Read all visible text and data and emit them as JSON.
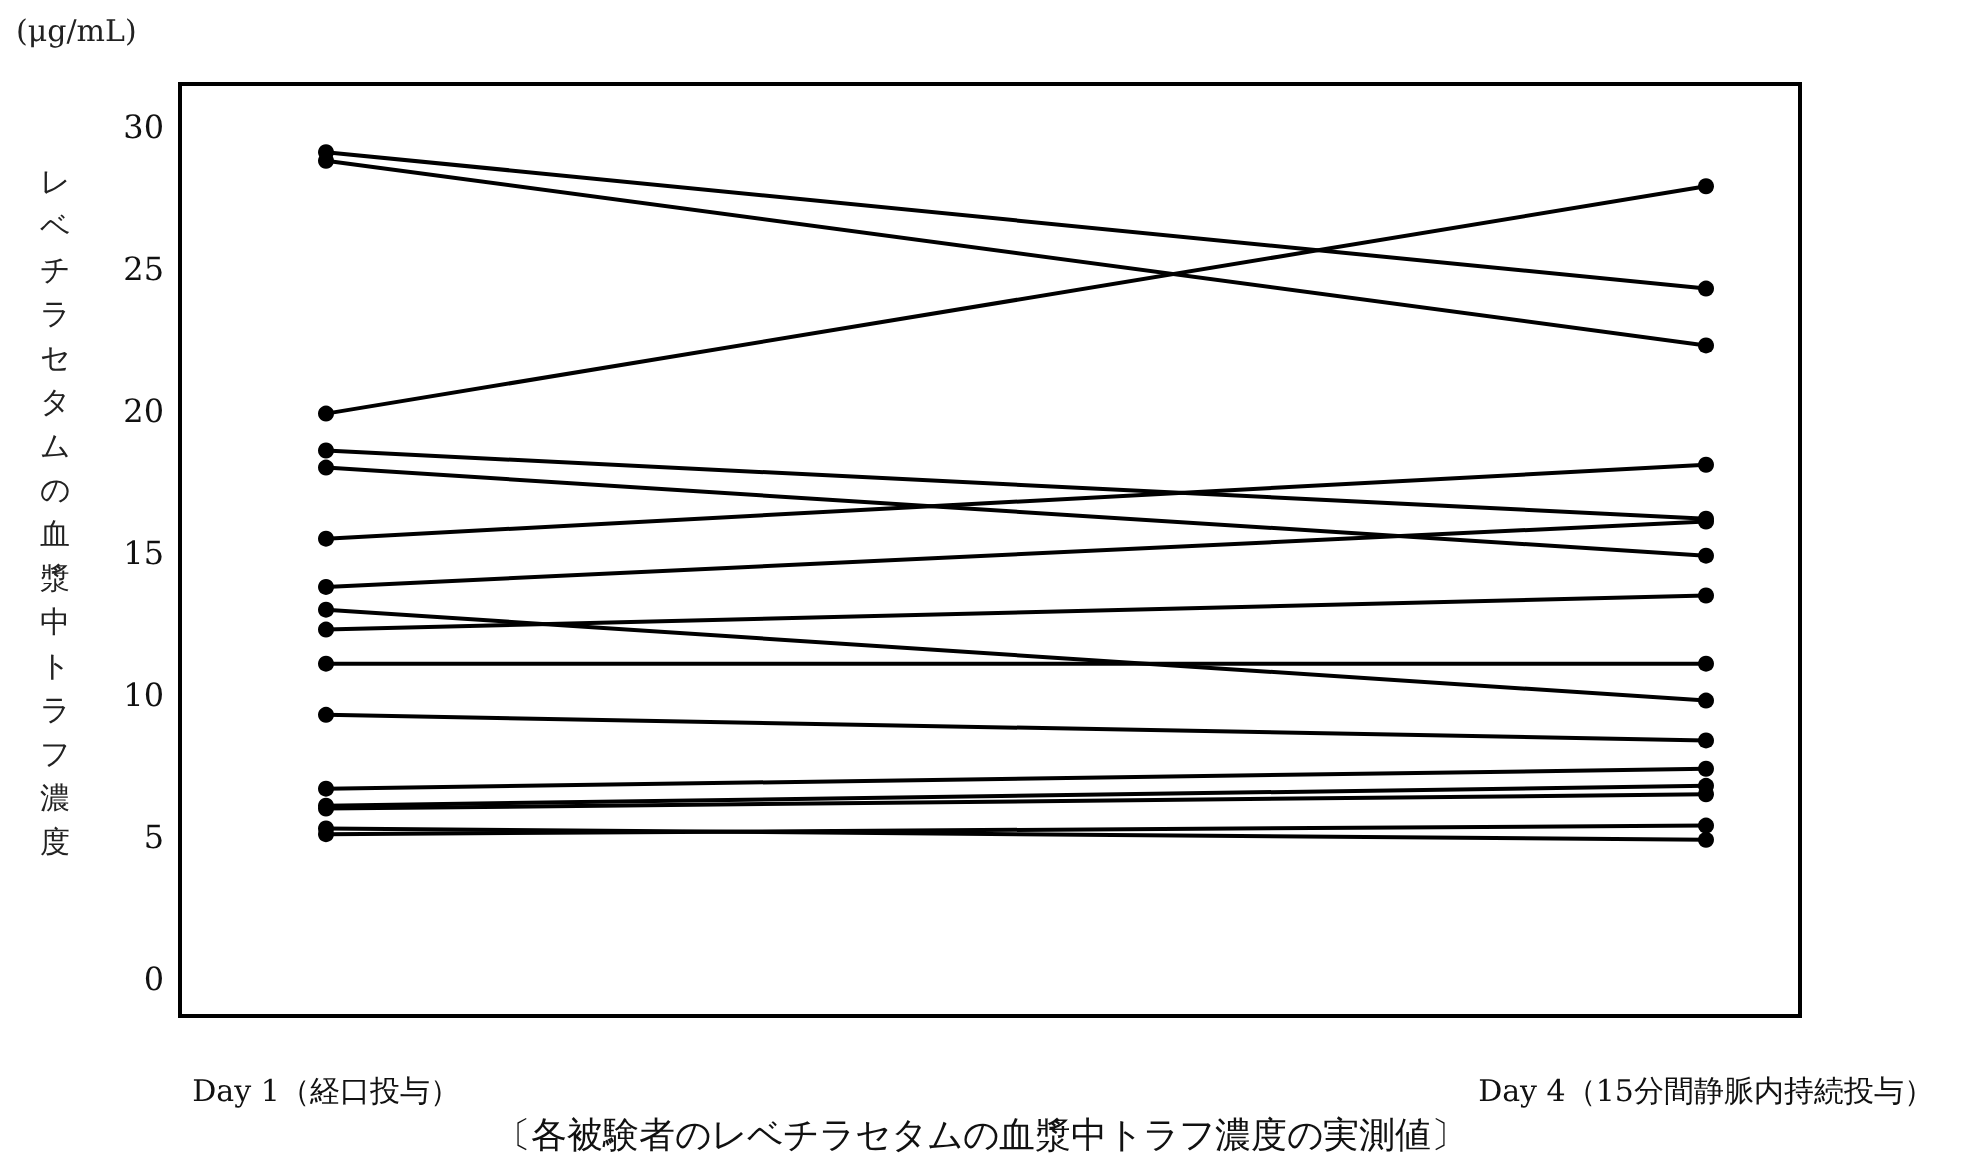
{
  "chart_data": {
    "type": "line",
    "title": "〔各被験者のレベチラセタムの血漿中トラフ濃度の実測値〕",
    "ylabel": "レベチラセタムの血漿中トラフ濃度",
    "annotations": [
      "(μg/mL)"
    ],
    "categories": [
      "Day 1（経口投与）",
      "Day 4（15分間静脈内持続投与）"
    ],
    "ylim": [
      -1.3,
      31.5
    ],
    "yticks": [
      0,
      5,
      10,
      15,
      20,
      25,
      30
    ],
    "grid": false,
    "marker": "circle",
    "line_style": "solid",
    "series": [
      {
        "color": "#000000",
        "values": [
          29.1,
          24.3
        ]
      },
      {
        "color": "#000000",
        "values": [
          28.8,
          22.3
        ]
      },
      {
        "color": "#000000",
        "values": [
          19.9,
          27.9
        ]
      },
      {
        "color": "#000000",
        "values": [
          18.6,
          16.2
        ]
      },
      {
        "color": "#000000",
        "values": [
          18.0,
          14.9
        ]
      },
      {
        "color": "#000000",
        "values": [
          15.5,
          18.1
        ]
      },
      {
        "color": "#000000",
        "values": [
          13.8,
          16.1
        ]
      },
      {
        "color": "#000000",
        "values": [
          13.0,
          9.8
        ]
      },
      {
        "color": "#000000",
        "values": [
          12.3,
          13.5
        ]
      },
      {
        "color": "#000000",
        "values": [
          11.1,
          11.1
        ]
      },
      {
        "color": "#000000",
        "values": [
          9.3,
          8.4
        ]
      },
      {
        "color": "#000000",
        "values": [
          6.7,
          7.4
        ]
      },
      {
        "color": "#000000",
        "values": [
          6.1,
          6.8
        ]
      },
      {
        "color": "#000000",
        "values": [
          6.0,
          6.5
        ]
      },
      {
        "color": "#000000",
        "values": [
          5.3,
          4.9
        ]
      },
      {
        "color": "#000000",
        "values": [
          5.1,
          5.4
        ]
      }
    ]
  }
}
